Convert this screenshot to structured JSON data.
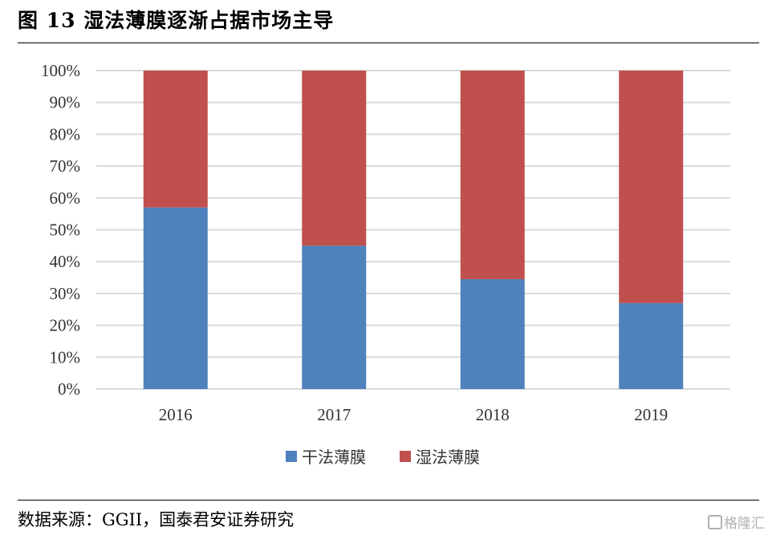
{
  "header": {
    "title": "图 13 湿法薄膜逐渐占据市场主导"
  },
  "footer": {
    "source": "数据来源：GGII，国泰君安证券研究",
    "watermark": "格隆汇"
  },
  "colors": {
    "dry": "#4f81bd",
    "wet": "#c0504d",
    "grid": "#d9d9d9"
  },
  "chart_data": {
    "type": "bar",
    "stacked": true,
    "categories": [
      "2016",
      "2017",
      "2018",
      "2019"
    ],
    "series": [
      {
        "name": "干法薄膜",
        "values": [
          57,
          45,
          34.5,
          27
        ]
      },
      {
        "name": "湿法薄膜",
        "values": [
          43,
          55,
          65.5,
          73
        ]
      }
    ],
    "yticks": [
      "0%",
      "10%",
      "20%",
      "30%",
      "40%",
      "50%",
      "60%",
      "70%",
      "80%",
      "90%",
      "100%"
    ],
    "ylim": [
      0,
      100
    ],
    "grid": true,
    "legend_position": "bottom"
  }
}
